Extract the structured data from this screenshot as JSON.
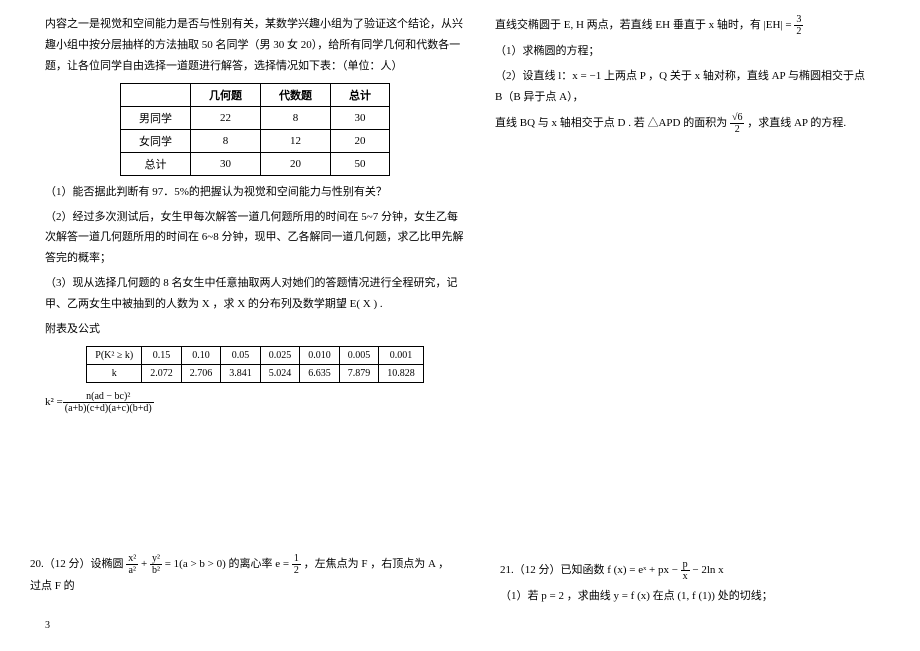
{
  "intro_text": "内容之一是视觉和空间能力是否与性别有关，某数学兴趣小组为了验证这个结论，从兴趣小组中按分层抽样的方法抽取 50 名同学（男 30 女 20），给所有同学几何和代数各一题，让各位同学自由选择一道题进行解答，选择情况如下表：（单位：人）",
  "table1": {
    "headers": [
      "",
      "几何题",
      "代数题",
      "总计"
    ],
    "rows": [
      [
        "男同学",
        "22",
        "8",
        "30"
      ],
      [
        "女同学",
        "8",
        "12",
        "20"
      ],
      [
        "总计",
        "30",
        "20",
        "50"
      ]
    ]
  },
  "q1": "（1）能否据此判断有 97．5%的把握认为视觉和空间能力与性别有关？",
  "q2": "（2）经过多次测试后，女生甲每次解答一道几何题所用的时间在 5~7 分钟，女生乙每次解答一道几何题所用的时间在 6~8 分钟，现甲、乙各解同一道几何题，求乙比甲先解答完的概率；",
  "q3": "（3）现从选择几何题的 8 名女生中任意抽取两人对她们的答题情况进行全程研究，记甲、乙两女生中被抽到的人数为 X ，求 X 的分布列及数学期望 E( X ) .",
  "appendix_label": "附表及公式",
  "table2": {
    "headers": [
      "P(K² ≥ k)",
      "0.15",
      "0.10",
      "0.05",
      "0.025",
      "0.010",
      "0.005",
      "0.001"
    ],
    "rows": [
      [
        "k",
        "2.072",
        "2.706",
        "3.841",
        "5.024",
        "6.635",
        "7.879",
        "10.828"
      ]
    ]
  },
  "formula_k2_lhs": "k² =",
  "formula_k2_num": "n(ad − bc)²",
  "formula_k2_den": "(a+b)(c+d)(a+c)(b+d)",
  "right_line1_a": "直线交椭圆于 E, H 两点，若直线 EH 垂直于 x 轴时，有 |EH| =",
  "right_line1_frac_num": "3",
  "right_line1_frac_den": "2",
  "right_q1": "（1）求椭圆的方程；",
  "right_q2_a": "（2）设直线 l：x = −1 上两点 P ，Q 关于 x 轴对称，直线 AP 与椭圆相交于点 B（B 异于点 A），",
  "right_q2_b_a": "直线 BQ 与 x 轴相交于点 D . 若 △APD 的面积为",
  "right_q2_b_num": "√6",
  "right_q2_b_den": "2",
  "right_q2_b_c": "，求直线 AP 的方程.",
  "p20_a": "20.（12 分）设椭圆",
  "p20_frac1_num": "x²",
  "p20_frac1_den": "a²",
  "p20_plus": " + ",
  "p20_frac2_num": "y²",
  "p20_frac2_den": "b²",
  "p20_b": " = 1(a > b > 0) 的离心率 e = ",
  "p20_e_num": "1",
  "p20_e_den": "2",
  "p20_c": "，左焦点为 F ，右顶点为 A ，过点 F 的",
  "p21_a": "21.（12 分）已知函数 f (x) = eˣ + px − ",
  "p21_frac_num": "p",
  "p21_frac_den": "x",
  "p21_b": " − 2ln x",
  "p21_q1": "（1）若 p = 2 ，求曲线 y = f (x) 在点 (1, f (1)) 处的切线；",
  "page_number": "3"
}
